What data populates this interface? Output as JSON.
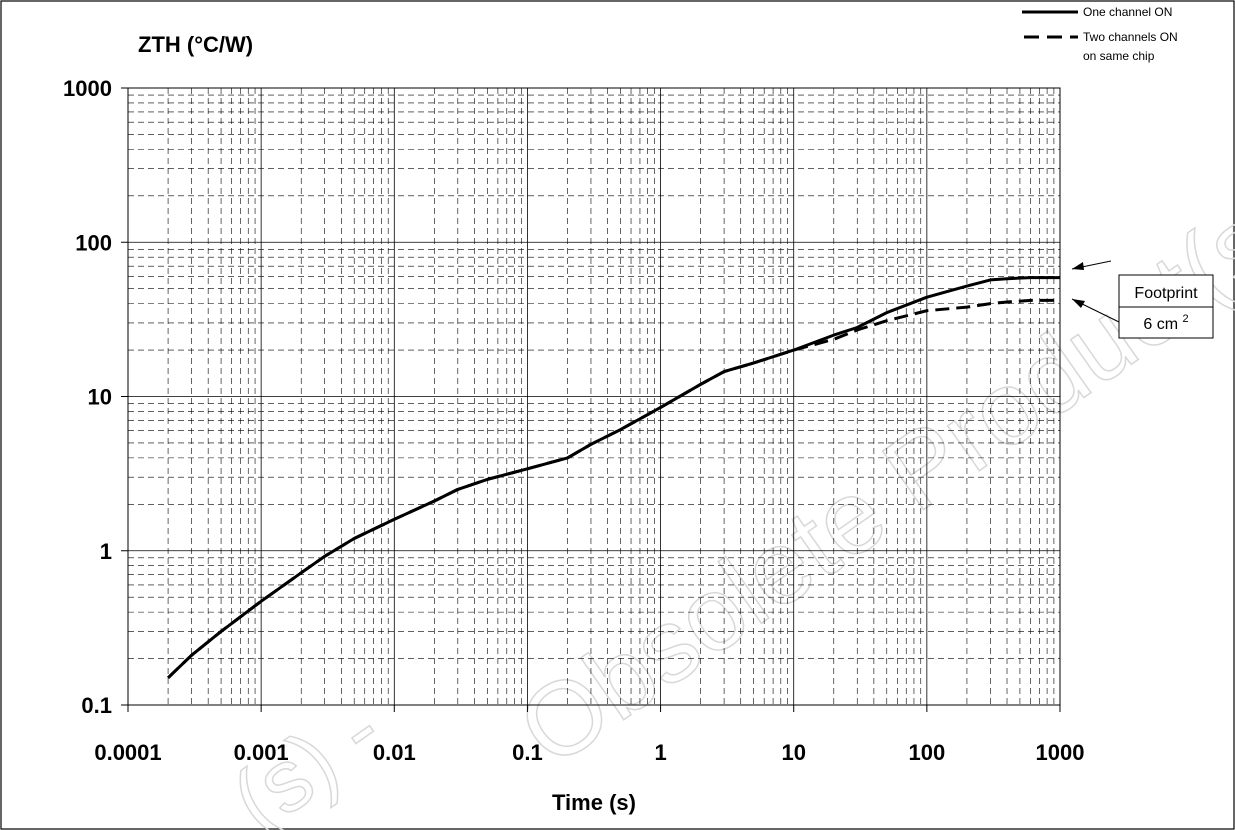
{
  "chart_data": {
    "type": "line",
    "ylabel": "ZTH (°C/W)",
    "xlabel": "Time (s)",
    "x_scale": "log",
    "y_scale": "log",
    "xlim": [
      0.0001,
      1000
    ],
    "ylim": [
      0.1,
      1000
    ],
    "x_tick_labels": [
      "0.0001",
      "0.001",
      "0.01",
      "0.1",
      "1",
      "10",
      "100",
      "1000"
    ],
    "y_tick_labels": [
      "0.1",
      "1",
      "10",
      "100",
      "1000"
    ],
    "grid": "major solid, minor dashed",
    "legend_position": "top-right",
    "series": [
      {
        "name": "One channel ON",
        "style": "solid",
        "color": "#000000",
        "x": [
          0.0002,
          0.0003,
          0.0005,
          0.001,
          0.002,
          0.003,
          0.005,
          0.01,
          0.02,
          0.03,
          0.05,
          0.1,
          0.2,
          0.3,
          0.5,
          1,
          2,
          3,
          5,
          10,
          20,
          30,
          50,
          100,
          200,
          300,
          400,
          600,
          1000
        ],
        "y": [
          0.15,
          0.21,
          0.3,
          0.47,
          0.72,
          0.92,
          1.2,
          1.6,
          2.1,
          2.5,
          2.9,
          3.4,
          4.0,
          4.9,
          6.1,
          8.5,
          12,
          14.5,
          16.5,
          20,
          25,
          28,
          35,
          44,
          52,
          57,
          58,
          59,
          59
        ]
      },
      {
        "name": "Two channels ON on same chip",
        "style": "dashed",
        "color": "#000000",
        "x": [
          0.0002,
          0.0003,
          0.0005,
          0.001,
          0.002,
          0.003,
          0.005,
          0.01,
          0.02,
          0.03,
          0.05,
          0.1,
          0.2,
          0.3,
          0.5,
          1,
          2,
          3,
          5,
          10,
          20,
          30,
          50,
          100,
          200,
          300,
          400,
          600,
          1000
        ],
        "y": [
          0.15,
          0.21,
          0.3,
          0.47,
          0.72,
          0.92,
          1.2,
          1.6,
          2.1,
          2.5,
          2.9,
          3.4,
          4.0,
          4.9,
          6.1,
          8.5,
          12,
          14.5,
          16.5,
          20,
          23.5,
          27,
          31,
          36,
          38,
          40,
          41,
          42,
          42
        ]
      }
    ],
    "annotation": {
      "label_line1": "Footprint",
      "label_line2_value": "6 cm",
      "label_line2_superscript": "2"
    }
  },
  "watermark": {
    "text": "Obsolete Product(s)",
    "faint_text": "(s) -"
  }
}
